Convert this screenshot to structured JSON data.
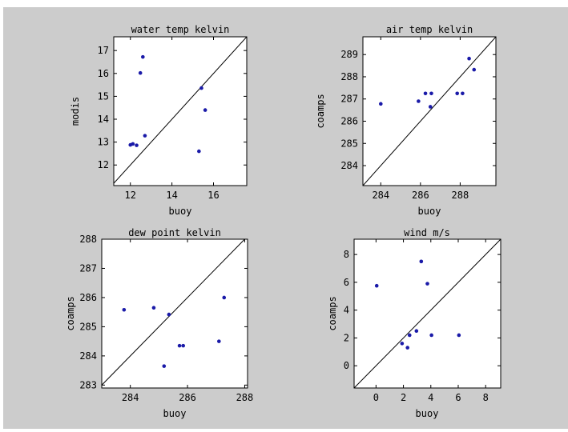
{
  "figure": {
    "background": "#cccccc",
    "axes_background": "#ffffff",
    "marker_color": "#1a1aa8",
    "line_color": "#000000"
  },
  "chart_data": [
    {
      "type": "scatter",
      "title": "water temp kelvin",
      "xlabel": "buoy",
      "ylabel": "modis",
      "xlim": [
        11.2,
        17.6
      ],
      "ylim": [
        11.1,
        17.6
      ],
      "xticks": [
        12,
        14,
        16
      ],
      "yticks": [
        12,
        13,
        14,
        15,
        16,
        17
      ],
      "identity_line": true,
      "points": [
        {
          "x": 12.0,
          "y": 12.88
        },
        {
          "x": 12.12,
          "y": 12.92
        },
        {
          "x": 12.3,
          "y": 12.86
        },
        {
          "x": 12.48,
          "y": 16.02
        },
        {
          "x": 12.6,
          "y": 16.72
        },
        {
          "x": 12.7,
          "y": 13.28
        },
        {
          "x": 15.3,
          "y": 12.6
        },
        {
          "x": 15.42,
          "y": 15.36
        },
        {
          "x": 15.6,
          "y": 14.4
        }
      ]
    },
    {
      "type": "scatter",
      "title": "air temp kelvin",
      "xlabel": "buoy",
      "ylabel": "coamps",
      "xlim": [
        283.1,
        289.8
      ],
      "ylim": [
        283.1,
        289.8
      ],
      "xticks": [
        284,
        286,
        288
      ],
      "yticks": [
        284,
        285,
        286,
        287,
        288,
        289
      ],
      "identity_line": true,
      "points": [
        {
          "x": 284.0,
          "y": 286.78
        },
        {
          "x": 285.9,
          "y": 286.9
        },
        {
          "x": 286.25,
          "y": 287.25
        },
        {
          "x": 286.5,
          "y": 286.65
        },
        {
          "x": 286.55,
          "y": 287.25
        },
        {
          "x": 287.85,
          "y": 287.25
        },
        {
          "x": 288.12,
          "y": 287.25
        },
        {
          "x": 288.45,
          "y": 288.82
        },
        {
          "x": 288.7,
          "y": 288.32
        }
      ]
    },
    {
      "type": "scatter",
      "title": "dew point kelvin",
      "xlabel": "buoy",
      "ylabel": "coamps",
      "xlim": [
        283,
        288.1
      ],
      "ylim": [
        282.9,
        288
      ],
      "xticks": [
        284,
        286,
        288
      ],
      "yticks": [
        283,
        284,
        285,
        286,
        287,
        288
      ],
      "identity_line": true,
      "points": [
        {
          "x": 283.78,
          "y": 285.58
        },
        {
          "x": 284.82,
          "y": 285.65
        },
        {
          "x": 285.18,
          "y": 283.65
        },
        {
          "x": 285.35,
          "y": 285.42
        },
        {
          "x": 285.72,
          "y": 284.35
        },
        {
          "x": 285.85,
          "y": 284.35
        },
        {
          "x": 287.1,
          "y": 284.5
        },
        {
          "x": 287.28,
          "y": 286.0
        }
      ]
    },
    {
      "type": "scatter",
      "title": "wind m/s",
      "xlabel": "buoy",
      "ylabel": "coamps",
      "xlim": [
        -1.6,
        9.1
      ],
      "ylim": [
        -1.6,
        9.1
      ],
      "xticks": [
        0,
        2,
        4,
        6,
        8
      ],
      "yticks": [
        0,
        2,
        4,
        6,
        8
      ],
      "identity_line": true,
      "points": [
        {
          "x": 0.05,
          "y": 5.75
        },
        {
          "x": 1.9,
          "y": 1.6
        },
        {
          "x": 2.3,
          "y": 1.3
        },
        {
          "x": 2.45,
          "y": 2.2
        },
        {
          "x": 2.95,
          "y": 2.5
        },
        {
          "x": 3.3,
          "y": 7.5
        },
        {
          "x": 3.75,
          "y": 5.9
        },
        {
          "x": 4.05,
          "y": 2.2
        },
        {
          "x": 6.05,
          "y": 2.2
        }
      ]
    }
  ]
}
